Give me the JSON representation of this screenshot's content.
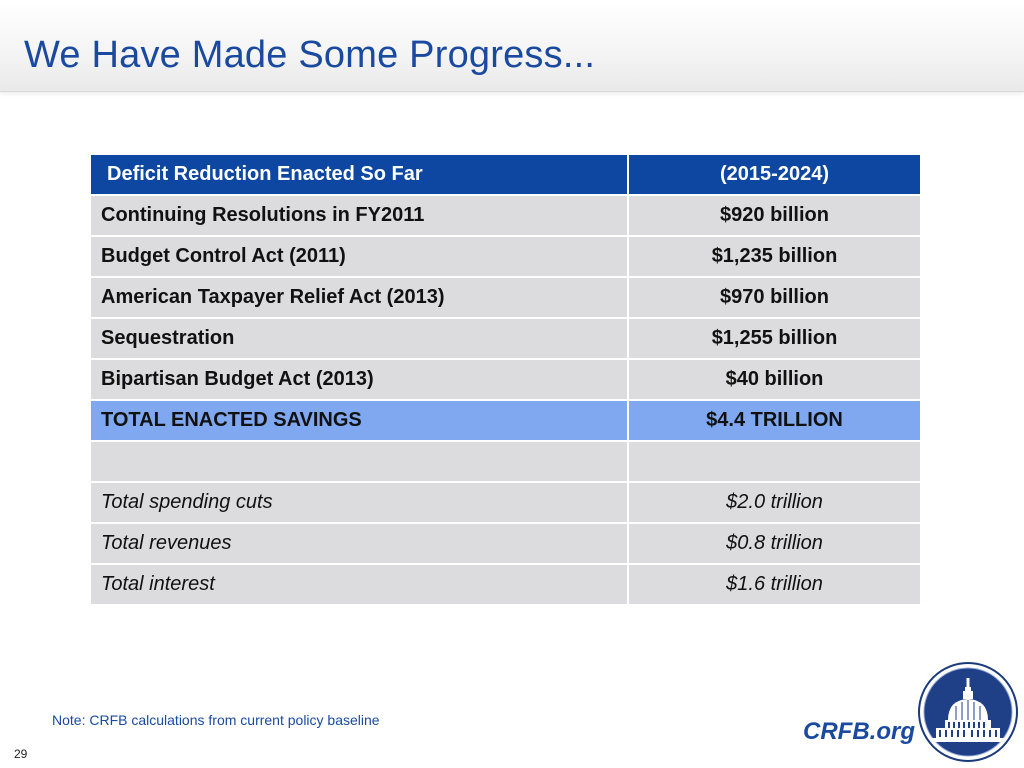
{
  "slide": {
    "title": "We Have Made Some Progress...",
    "page_number": "29",
    "note": "Note: CRFB calculations from current policy baseline",
    "site": "CRFB.org"
  },
  "table": {
    "header": [
      "Deficit Reduction Enacted So Far",
      "(2015-2024)"
    ],
    "rows": [
      [
        "Continuing Resolutions in FY2011",
        "$920 billion"
      ],
      [
        "Budget Control Act (2011)",
        "$1,235 billion"
      ],
      [
        "American Taxpayer Relief Act (2013)",
        "$970 billion"
      ],
      [
        "Sequestration",
        "$1,255 billion"
      ],
      [
        "Bipartisan Budget Act (2013)",
        "$40 billion"
      ]
    ],
    "total": [
      "TOTAL ENACTED SAVINGS",
      "$4.4 TRILLION"
    ],
    "breakdown": [
      [
        "Total spending cuts",
        "$2.0 trillion"
      ],
      [
        "Total revenues",
        "$0.8 trillion"
      ],
      [
        "Total interest",
        "$1.6 trillion"
      ]
    ]
  },
  "colors": {
    "title": "#1a4aa0",
    "header_bg": "#0d47a1",
    "total_bg": "#7fa8f0",
    "row_bg": "#dcdcde"
  },
  "icons": {
    "logo": "capitol-dome-seal-icon"
  }
}
